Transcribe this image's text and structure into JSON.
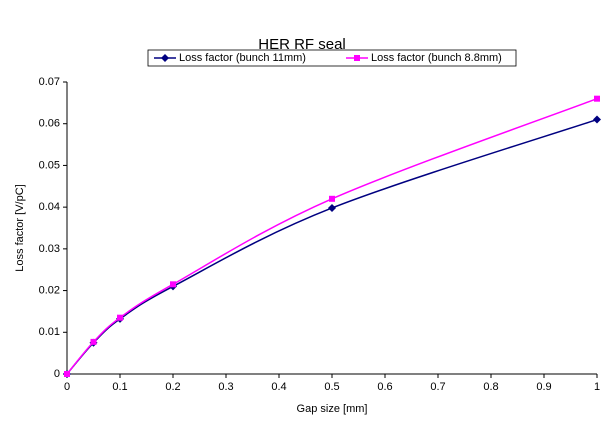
{
  "chart_data": {
    "type": "line",
    "title": "HER RF seal",
    "x_label": "Gap size [mm]",
    "y_label": "Loss factor [V/pC]",
    "x": [
      0,
      0.05,
      0.1,
      0.2,
      0.5,
      1
    ],
    "series": [
      {
        "name": "Loss factor (bunch 11mm)",
        "color": "#000080",
        "marker": "diamond",
        "values": [
          0,
          0.0075,
          0.0132,
          0.021,
          0.0398,
          0.061
        ]
      },
      {
        "name": "Loss factor (bunch 8.8mm)",
        "color": "#ff00ff",
        "marker": "square",
        "values": [
          0,
          0.0077,
          0.0135,
          0.0215,
          0.042,
          0.066
        ]
      }
    ],
    "xlim": [
      0,
      1
    ],
    "xticks": [
      0,
      0.1,
      0.2,
      0.3,
      0.4,
      0.5,
      0.6,
      0.7,
      0.8,
      0.9,
      1
    ],
    "ylim": [
      0,
      0.07
    ],
    "yticks": [
      0,
      0.01,
      0.02,
      0.03,
      0.04,
      0.05,
      0.06,
      0.07
    ],
    "grid": false,
    "legend": "top"
  }
}
